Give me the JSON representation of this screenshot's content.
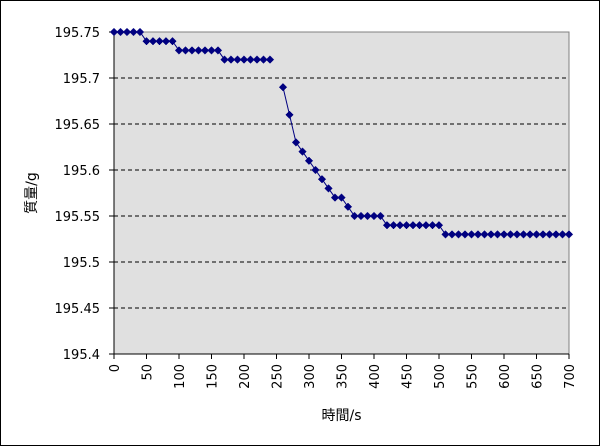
{
  "chart_data": {
    "type": "line",
    "title": "",
    "xlabel": "時間/s",
    "ylabel": "質量/g",
    "xlim": [
      0,
      700
    ],
    "ylim": [
      195.4,
      195.75
    ],
    "x_ticks": [
      0,
      50,
      100,
      150,
      200,
      250,
      300,
      350,
      400,
      450,
      500,
      550,
      600,
      650,
      700
    ],
    "y_ticks": [
      195.4,
      195.45,
      195.5,
      195.55,
      195.6,
      195.65,
      195.7,
      195.75
    ],
    "y_tick_labels": [
      "195.4",
      "195.45",
      "195.5",
      "195.55",
      "195.6",
      "195.65",
      "195.7",
      "195.75"
    ],
    "grid": {
      "horizontal": true,
      "style": "dashed"
    },
    "legend": "none",
    "colors": {
      "series": "#000080",
      "plot_background": "#e0e0e0",
      "grid": "#000000"
    },
    "series": [
      {
        "marker": "diamond",
        "segments": [
          [
            [
              0,
              195.75
            ],
            [
              10,
              195.75
            ],
            [
              20,
              195.75
            ],
            [
              30,
              195.75
            ],
            [
              40,
              195.75
            ],
            [
              50,
              195.74
            ],
            [
              60,
              195.74
            ],
            [
              70,
              195.74
            ],
            [
              80,
              195.74
            ],
            [
              90,
              195.74
            ],
            [
              100,
              195.73
            ],
            [
              110,
              195.73
            ],
            [
              120,
              195.73
            ],
            [
              130,
              195.73
            ],
            [
              140,
              195.73
            ],
            [
              150,
              195.73
            ],
            [
              160,
              195.73
            ],
            [
              170,
              195.72
            ],
            [
              180,
              195.72
            ],
            [
              190,
              195.72
            ],
            [
              200,
              195.72
            ],
            [
              210,
              195.72
            ],
            [
              220,
              195.72
            ],
            [
              230,
              195.72
            ],
            [
              240,
              195.72
            ]
          ],
          [
            [
              260,
              195.69
            ],
            [
              270,
              195.66
            ],
            [
              280,
              195.63
            ],
            [
              290,
              195.62
            ],
            [
              300,
              195.61
            ],
            [
              310,
              195.6
            ],
            [
              320,
              195.59
            ],
            [
              330,
              195.58
            ],
            [
              340,
              195.57
            ],
            [
              350,
              195.57
            ],
            [
              360,
              195.56
            ],
            [
              370,
              195.55
            ],
            [
              380,
              195.55
            ],
            [
              390,
              195.55
            ],
            [
              400,
              195.55
            ],
            [
              410,
              195.55
            ],
            [
              420,
              195.54
            ],
            [
              430,
              195.54
            ],
            [
              440,
              195.54
            ],
            [
              450,
              195.54
            ],
            [
              460,
              195.54
            ],
            [
              470,
              195.54
            ],
            [
              480,
              195.54
            ],
            [
              490,
              195.54
            ],
            [
              500,
              195.54
            ],
            [
              510,
              195.53
            ],
            [
              520,
              195.53
            ],
            [
              530,
              195.53
            ],
            [
              540,
              195.53
            ],
            [
              550,
              195.53
            ],
            [
              560,
              195.53
            ],
            [
              570,
              195.53
            ],
            [
              580,
              195.53
            ],
            [
              590,
              195.53
            ],
            [
              600,
              195.53
            ],
            [
              610,
              195.53
            ],
            [
              620,
              195.53
            ],
            [
              630,
              195.53
            ],
            [
              640,
              195.53
            ],
            [
              650,
              195.53
            ],
            [
              660,
              195.53
            ],
            [
              670,
              195.53
            ],
            [
              680,
              195.53
            ],
            [
              690,
              195.53
            ],
            [
              700,
              195.53
            ]
          ]
        ]
      }
    ]
  }
}
